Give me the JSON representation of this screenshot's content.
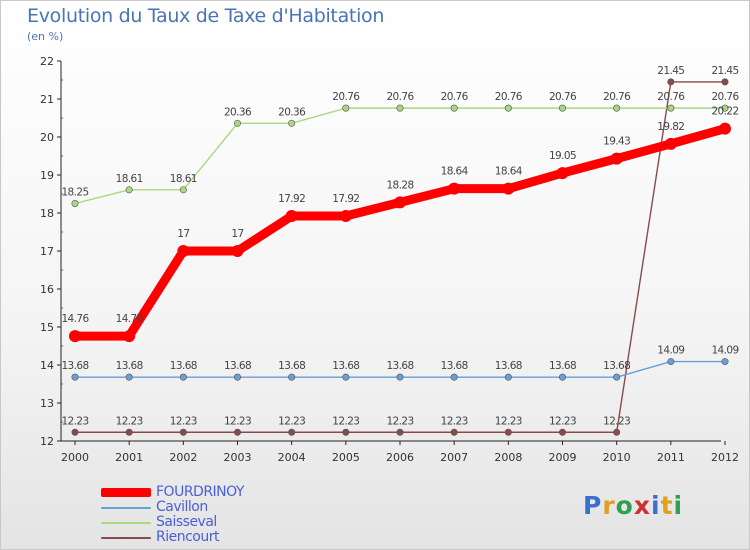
{
  "title": "Evolution du Taux de Taxe d'Habitation",
  "subtitle": "(en %)",
  "logo": {
    "letters": [
      {
        "ch": "P",
        "color": "#3a6fd0"
      },
      {
        "ch": "r",
        "color": "#e0a020"
      },
      {
        "ch": "o",
        "color": "#30a050"
      },
      {
        "ch": "x",
        "color": "#d03030"
      },
      {
        "ch": "i",
        "color": "#3a6fd0"
      },
      {
        "ch": "t",
        "color": "#e0a020"
      },
      {
        "ch": "i",
        "color": "#30a050"
      }
    ]
  },
  "chart_data": {
    "type": "line",
    "title": "Evolution du Taux de Taxe d'Habitation",
    "subtitle": "(en %)",
    "x": [
      "2000",
      "2001",
      "2002",
      "2003",
      "2004",
      "2005",
      "2006",
      "2007",
      "2008",
      "2009",
      "2010",
      "2011",
      "2012"
    ],
    "ylim": [
      12,
      22
    ],
    "yticks": [
      12,
      13,
      14,
      15,
      16,
      17,
      18,
      19,
      20,
      21,
      22
    ],
    "grid": false,
    "legend_position": "bottom-left",
    "series": [
      {
        "name": "FOURDRINOY",
        "color": "#ff0000",
        "values": [
          14.76,
          14.76,
          17,
          17,
          17.92,
          17.92,
          18.28,
          18.64,
          18.64,
          19.05,
          19.43,
          19.82,
          20.22
        ],
        "labels": [
          "14.76",
          "14.76",
          "17",
          "17",
          "17.92",
          "17.92",
          "18.28",
          "18.64",
          "18.64",
          "19.05",
          "19.43",
          "19.82",
          "20.22"
        ]
      },
      {
        "name": "Cavillon",
        "color": "#6a9fd4",
        "values": [
          13.68,
          13.68,
          13.68,
          13.68,
          13.68,
          13.68,
          13.68,
          13.68,
          13.68,
          13.68,
          13.68,
          14.09,
          14.09
        ],
        "labels": [
          "13.68",
          "13.68",
          "13.68",
          "13.68",
          "13.68",
          "13.68",
          "13.68",
          "13.68",
          "13.68",
          "13.68",
          "13.68",
          "14.09",
          "14.09"
        ]
      },
      {
        "name": "Saisseval",
        "color": "#a8d880",
        "values": [
          18.25,
          18.61,
          18.61,
          20.36,
          20.36,
          20.76,
          20.76,
          20.76,
          20.76,
          20.76,
          20.76,
          20.76,
          20.76
        ],
        "labels": [
          "18.25",
          "18.61",
          "18.61",
          "20.36",
          "20.36",
          "20.76",
          "20.76",
          "20.76",
          "20.76",
          "20.76",
          "20.76",
          "20.76",
          "20.76"
        ]
      },
      {
        "name": "Riencourt",
        "color": "#8a4a4a",
        "values": [
          12.23,
          12.23,
          12.23,
          12.23,
          12.23,
          12.23,
          12.23,
          12.23,
          12.23,
          12.23,
          12.23,
          21.45,
          21.45
        ],
        "labels": [
          "12.23",
          "12.23",
          "12.23",
          "12.23",
          "12.23",
          "12.23",
          "12.23",
          "12.23",
          "12.23",
          "12.23",
          "12.23",
          "21.45",
          "21.45"
        ]
      }
    ]
  }
}
